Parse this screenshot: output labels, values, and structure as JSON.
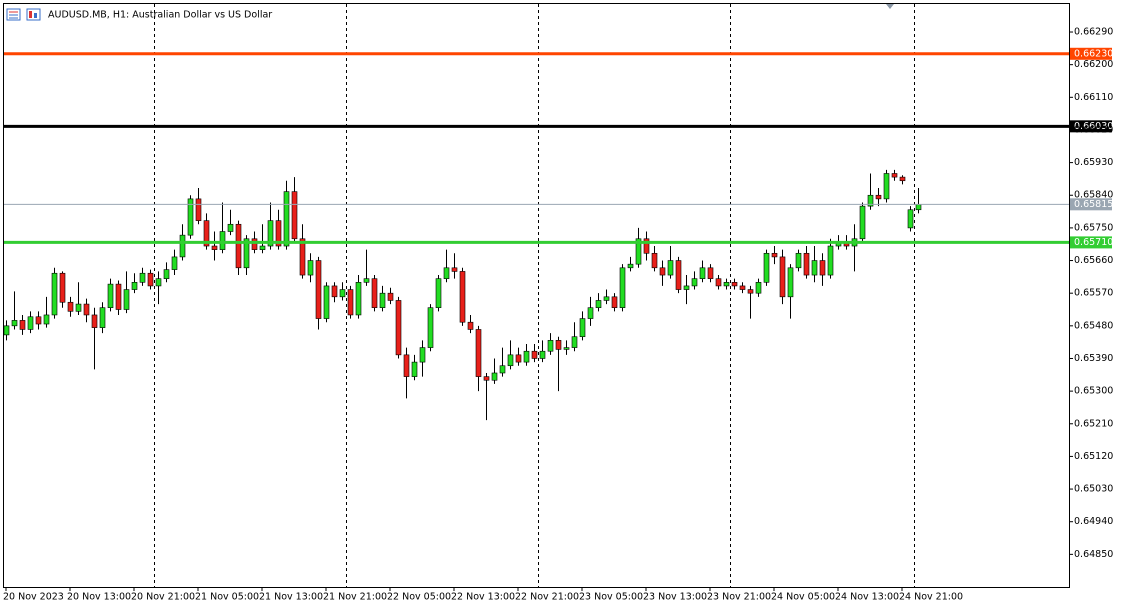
{
  "chart_data": {
    "type": "candlestick",
    "title": "AUDUSD.MB, H1:  Australian Dollar vs US Dollar",
    "bull_color": "#22dd22",
    "bear_color": "#e8201a",
    "ylim": [
      0.6476,
      0.6637
    ],
    "yticks": [
      {
        "value": 0.6629,
        "label": "0.66290"
      },
      {
        "value": 0.662,
        "label": "0.66200"
      },
      {
        "value": 0.6611,
        "label": "0.66110"
      },
      {
        "value": 0.6602,
        "label": "0.66020"
      },
      {
        "value": 0.6593,
        "label": "0.65930"
      },
      {
        "value": 0.6584,
        "label": "0.65840"
      },
      {
        "value": 0.6575,
        "label": "0.65750"
      },
      {
        "value": 0.6566,
        "label": "0.65660"
      },
      {
        "value": 0.6557,
        "label": "0.65570"
      },
      {
        "value": 0.6548,
        "label": "0.65480"
      },
      {
        "value": 0.6539,
        "label": "0.65390"
      },
      {
        "value": 0.653,
        "label": "0.65300"
      },
      {
        "value": 0.6521,
        "label": "0.65210"
      },
      {
        "value": 0.6512,
        "label": "0.65120"
      },
      {
        "value": 0.6503,
        "label": "0.65030"
      },
      {
        "value": 0.6494,
        "label": "0.64940"
      },
      {
        "value": 0.6485,
        "label": "0.64850"
      }
    ],
    "levels": [
      {
        "value": 0.6623,
        "label": "0.66230",
        "color": "#ff4500"
      },
      {
        "value": 0.6603,
        "label": "0.66030",
        "color": "#000000"
      },
      {
        "value": 0.65815,
        "label": "0.65815",
        "color": "#9aa6b2"
      },
      {
        "value": 0.6571,
        "label": "0.65710",
        "color": "#32cd32"
      }
    ],
    "categories": [
      "20 Nov 2023",
      null,
      null,
      null,
      null,
      null,
      null,
      null,
      "20 Nov 13:00",
      null,
      null,
      null,
      null,
      null,
      null,
      null,
      "20 Nov 21:00",
      null,
      null,
      null,
      null,
      null,
      null,
      null,
      "21 Nov 05:00",
      null,
      null,
      null,
      null,
      null,
      null,
      null,
      "21 Nov 13:00",
      null,
      null,
      null,
      null,
      null,
      null,
      null,
      "21 Nov 21:00",
      null,
      null,
      null,
      null,
      null,
      null,
      null,
      "22 Nov 05:00",
      null,
      null,
      null,
      null,
      null,
      null,
      null,
      "22 Nov 13:00",
      null,
      null,
      null,
      null,
      null,
      null,
      null,
      "22 Nov 21:00",
      null,
      null,
      null,
      null,
      null,
      null,
      null,
      "23 Nov 05:00",
      null,
      null,
      null,
      null,
      null,
      null,
      null,
      "23 Nov 13:00",
      null,
      null,
      null,
      null,
      null,
      null,
      null,
      "23 Nov 21:00",
      null,
      null,
      null,
      null,
      null,
      null,
      null,
      "24 Nov 05:00",
      null,
      null,
      null,
      null,
      null,
      null,
      null,
      "24 Nov 13:00",
      null,
      null,
      null,
      null,
      null,
      null,
      null,
      "24 Nov 21:00",
      null,
      null
    ],
    "ohlc": [
      [
        0.65455,
        0.65495,
        0.6544,
        0.6548
      ],
      [
        0.6548,
        0.65575,
        0.6547,
        0.65495
      ],
      [
        0.65495,
        0.6551,
        0.65455,
        0.6547
      ],
      [
        0.6547,
        0.6552,
        0.6546,
        0.65505
      ],
      [
        0.65505,
        0.6552,
        0.6547,
        0.65485
      ],
      [
        0.65485,
        0.6556,
        0.65475,
        0.6551
      ],
      [
        0.6551,
        0.6564,
        0.655,
        0.65625
      ],
      [
        0.65625,
        0.6563,
        0.6553,
        0.65545
      ],
      [
        0.65545,
        0.6556,
        0.65505,
        0.6552
      ],
      [
        0.6552,
        0.656,
        0.6551,
        0.6554
      ],
      [
        0.6554,
        0.65555,
        0.6549,
        0.6551
      ],
      [
        0.6551,
        0.6553,
        0.6536,
        0.65475
      ],
      [
        0.65475,
        0.65545,
        0.6546,
        0.6553
      ],
      [
        0.6553,
        0.6561,
        0.6552,
        0.65595
      ],
      [
        0.65595,
        0.65605,
        0.6551,
        0.65525
      ],
      [
        0.65525,
        0.6563,
        0.65515,
        0.6558
      ],
      [
        0.6558,
        0.65625,
        0.6557,
        0.656
      ],
      [
        0.656,
        0.6564,
        0.6559,
        0.65625
      ],
      [
        0.65625,
        0.65635,
        0.6558,
        0.6559
      ],
      [
        0.6559,
        0.6563,
        0.6554,
        0.6561
      ],
      [
        0.6561,
        0.65655,
        0.656,
        0.65635
      ],
      [
        0.65635,
        0.6569,
        0.6562,
        0.6567
      ],
      [
        0.6567,
        0.6576,
        0.6566,
        0.6573
      ],
      [
        0.6573,
        0.6584,
        0.6572,
        0.6583
      ],
      [
        0.6583,
        0.6586,
        0.6576,
        0.6577
      ],
      [
        0.6577,
        0.6579,
        0.6569,
        0.657
      ],
      [
        0.657,
        0.6574,
        0.6566,
        0.6569
      ],
      [
        0.6569,
        0.6582,
        0.6568,
        0.6574
      ],
      [
        0.6574,
        0.658,
        0.6573,
        0.6576
      ],
      [
        0.6576,
        0.6577,
        0.6562,
        0.6564
      ],
      [
        0.6564,
        0.6573,
        0.6562,
        0.6572
      ],
      [
        0.6572,
        0.6574,
        0.6568,
        0.6569
      ],
      [
        0.6569,
        0.6576,
        0.6568,
        0.657
      ],
      [
        0.657,
        0.6582,
        0.6569,
        0.6577
      ],
      [
        0.6577,
        0.658,
        0.6569,
        0.657
      ],
      [
        0.657,
        0.6588,
        0.6569,
        0.6585
      ],
      [
        0.6585,
        0.6589,
        0.6571,
        0.6572
      ],
      [
        0.6572,
        0.6576,
        0.6561,
        0.6562
      ],
      [
        0.6562,
        0.6568,
        0.656,
        0.6566
      ],
      [
        0.6566,
        0.6567,
        0.6547,
        0.655
      ],
      [
        0.655,
        0.656,
        0.6549,
        0.6559
      ],
      [
        0.6559,
        0.656,
        0.65545,
        0.6556
      ],
      [
        0.6556,
        0.656,
        0.6555,
        0.6558
      ],
      [
        0.6558,
        0.6559,
        0.655,
        0.6551
      ],
      [
        0.6551,
        0.6562,
        0.655,
        0.656
      ],
      [
        0.656,
        0.6569,
        0.6559,
        0.6561
      ],
      [
        0.6561,
        0.6562,
        0.6552,
        0.6553
      ],
      [
        0.6553,
        0.6559,
        0.6552,
        0.6557
      ],
      [
        0.6557,
        0.65585,
        0.6554,
        0.6555
      ],
      [
        0.6555,
        0.6556,
        0.6539,
        0.654
      ],
      [
        0.654,
        0.6542,
        0.6528,
        0.6534
      ],
      [
        0.6534,
        0.654,
        0.6533,
        0.6538
      ],
      [
        0.6538,
        0.6544,
        0.6534,
        0.6542
      ],
      [
        0.6542,
        0.6554,
        0.6541,
        0.6553
      ],
      [
        0.6553,
        0.6562,
        0.6552,
        0.6561
      ],
      [
        0.6561,
        0.6569,
        0.656,
        0.6564
      ],
      [
        0.6564,
        0.6568,
        0.6561,
        0.6563
      ],
      [
        0.6563,
        0.6564,
        0.6548,
        0.6549
      ],
      [
        0.6549,
        0.6551,
        0.6546,
        0.6547
      ],
      [
        0.6547,
        0.6548,
        0.653,
        0.6534
      ],
      [
        0.6534,
        0.6535,
        0.6522,
        0.6533
      ],
      [
        0.6533,
        0.6539,
        0.6532,
        0.6535
      ],
      [
        0.6535,
        0.6542,
        0.6534,
        0.6537
      ],
      [
        0.6537,
        0.6544,
        0.6536,
        0.654
      ],
      [
        0.654,
        0.6542,
        0.6537,
        0.6538
      ],
      [
        0.6538,
        0.6543,
        0.6537,
        0.6541
      ],
      [
        0.6541,
        0.6543,
        0.6538,
        0.6539
      ],
      [
        0.6539,
        0.6544,
        0.6538,
        0.6541
      ],
      [
        0.6541,
        0.6546,
        0.654,
        0.6544
      ],
      [
        0.6544,
        0.6545,
        0.653,
        0.65415
      ],
      [
        0.65415,
        0.6544,
        0.654,
        0.6542
      ],
      [
        0.6542,
        0.6549,
        0.6541,
        0.6545
      ],
      [
        0.6545,
        0.6552,
        0.6544,
        0.655
      ],
      [
        0.655,
        0.6556,
        0.6548,
        0.6553
      ],
      [
        0.6553,
        0.6557,
        0.6552,
        0.6555
      ],
      [
        0.6555,
        0.6558,
        0.6554,
        0.6556
      ],
      [
        0.6556,
        0.6557,
        0.6552,
        0.6553
      ],
      [
        0.6553,
        0.6565,
        0.6552,
        0.6564
      ],
      [
        0.6564,
        0.6567,
        0.6563,
        0.6565
      ],
      [
        0.6565,
        0.6575,
        0.6564,
        0.6572
      ],
      [
        0.6572,
        0.6574,
        0.6566,
        0.6568
      ],
      [
        0.6568,
        0.657,
        0.6563,
        0.6564
      ],
      [
        0.6564,
        0.6566,
        0.6559,
        0.6562
      ],
      [
        0.6562,
        0.657,
        0.6561,
        0.6566
      ],
      [
        0.6566,
        0.6567,
        0.6557,
        0.6558
      ],
      [
        0.6558,
        0.6562,
        0.6554,
        0.6559
      ],
      [
        0.6559,
        0.6563,
        0.6558,
        0.6561
      ],
      [
        0.6561,
        0.6566,
        0.656,
        0.6564
      ],
      [
        0.6564,
        0.6565,
        0.656,
        0.6561
      ],
      [
        0.6561,
        0.6562,
        0.6558,
        0.6559
      ],
      [
        0.6559,
        0.6561,
        0.6558,
        0.656
      ],
      [
        0.656,
        0.6561,
        0.6558,
        0.6559
      ],
      [
        0.6559,
        0.656,
        0.6557,
        0.6558
      ],
      [
        0.6558,
        0.6559,
        0.655,
        0.6557
      ],
      [
        0.6557,
        0.6561,
        0.6556,
        0.656
      ],
      [
        0.656,
        0.6569,
        0.6559,
        0.6568
      ],
      [
        0.6568,
        0.657,
        0.6565,
        0.6567
      ],
      [
        0.6567,
        0.6569,
        0.6554,
        0.6556
      ],
      [
        0.6556,
        0.6565,
        0.655,
        0.6564
      ],
      [
        0.6564,
        0.6569,
        0.6563,
        0.6568
      ],
      [
        0.6568,
        0.657,
        0.6561,
        0.6562
      ],
      [
        0.6562,
        0.657,
        0.656,
        0.6566
      ],
      [
        0.6566,
        0.6568,
        0.6559,
        0.6562
      ],
      [
        0.6562,
        0.6572,
        0.6561,
        0.657
      ],
      [
        0.657,
        0.6573,
        0.6569,
        0.6571
      ],
      [
        0.6571,
        0.6573,
        0.6569,
        0.657
      ],
      [
        0.657,
        0.6576,
        0.6563,
        0.6572
      ],
      [
        0.6572,
        0.6582,
        0.6571,
        0.6581
      ],
      [
        0.6581,
        0.659,
        0.658,
        0.6584
      ],
      [
        0.6584,
        0.6586,
        0.6581,
        0.6583
      ],
      [
        0.6583,
        0.6591,
        0.6582,
        0.659
      ],
      [
        0.659,
        0.6591,
        0.6588,
        0.6589
      ],
      [
        0.6589,
        0.65895,
        0.6587,
        0.6588
      ],
      [
        0.6575,
        0.6581,
        0.6574,
        0.658
      ],
      [
        0.658,
        0.6586,
        0.6579,
        0.65815
      ]
    ]
  }
}
